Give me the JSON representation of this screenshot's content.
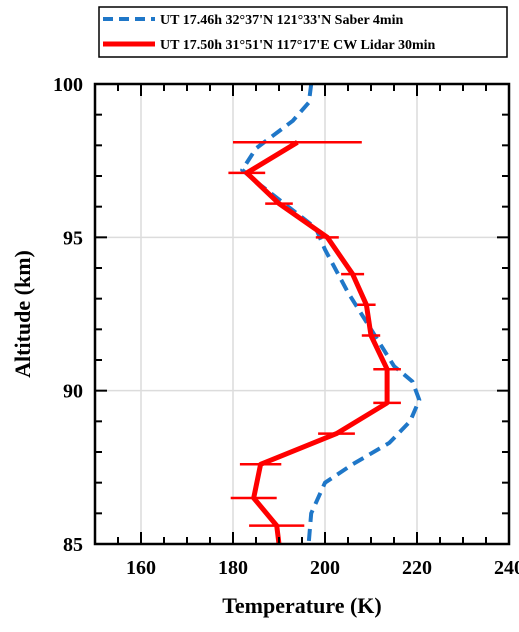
{
  "chart_data": {
    "type": "line",
    "xlabel": "Temperature (K)",
    "ylabel": "Altitude (km)",
    "xlim": [
      150,
      240
    ],
    "ylim": [
      85,
      100
    ],
    "x_ticks": [
      160,
      180,
      200,
      220,
      240
    ],
    "y_ticks": [
      85,
      90,
      95,
      100
    ],
    "grid": true,
    "legend_position": "top",
    "series": [
      {
        "name": "UT 17.46h 32°37'N 121°33'N  Saber 4min",
        "color": "#1f77c8",
        "style": "dashed",
        "points": [
          {
            "temp": 196.5,
            "alt": 85.1
          },
          {
            "temp": 197.0,
            "alt": 86.0
          },
          {
            "temp": 200.0,
            "alt": 87.0
          },
          {
            "temp": 206.0,
            "alt": 87.6
          },
          {
            "temp": 214.0,
            "alt": 88.3
          },
          {
            "temp": 218.5,
            "alt": 89.0
          },
          {
            "temp": 220.5,
            "alt": 89.7
          },
          {
            "temp": 219.0,
            "alt": 90.3
          },
          {
            "temp": 215.0,
            "alt": 90.8
          },
          {
            "temp": 210.0,
            "alt": 92.0
          },
          {
            "temp": 205.0,
            "alt": 93.2
          },
          {
            "temp": 200.0,
            "alt": 94.6
          },
          {
            "temp": 198.0,
            "alt": 95.3
          },
          {
            "temp": 192.0,
            "alt": 96.0
          },
          {
            "temp": 186.0,
            "alt": 96.7
          },
          {
            "temp": 182.0,
            "alt": 97.2
          },
          {
            "temp": 185.0,
            "alt": 97.9
          },
          {
            "temp": 193.0,
            "alt": 98.8
          },
          {
            "temp": 196.5,
            "alt": 99.4
          },
          {
            "temp": 197.0,
            "alt": 100.0
          }
        ]
      },
      {
        "name": "UT 17.50h 31°51'N 117°17'E CW Lidar 30min",
        "color": "#ff0000",
        "style": "solid",
        "points": [
          {
            "temp": 190.0,
            "alt": 85.0,
            "err": 0
          },
          {
            "temp": 189.5,
            "alt": 85.6,
            "err": 6.0
          },
          {
            "temp": 184.5,
            "alt": 86.5,
            "err": 5.0
          },
          {
            "temp": 186.0,
            "alt": 87.6,
            "err": 4.5
          },
          {
            "temp": 202.5,
            "alt": 88.6,
            "err": 4.0
          },
          {
            "temp": 213.5,
            "alt": 89.6,
            "err": 3.0
          },
          {
            "temp": 213.5,
            "alt": 90.7,
            "err": 3.0
          },
          {
            "temp": 210.0,
            "alt": 91.8,
            "err": 2.0
          },
          {
            "temp": 209.0,
            "alt": 92.8,
            "err": 2.0
          },
          {
            "temp": 206.0,
            "alt": 93.8,
            "err": 2.5
          },
          {
            "temp": 200.5,
            "alt": 95.0,
            "err": 2.5
          },
          {
            "temp": 190.0,
            "alt": 96.1,
            "err": 3.0
          },
          {
            "temp": 183.0,
            "alt": 97.1,
            "err": 4.0
          },
          {
            "temp": 194.0,
            "alt": 98.1,
            "err": 14.0
          }
        ]
      }
    ]
  }
}
